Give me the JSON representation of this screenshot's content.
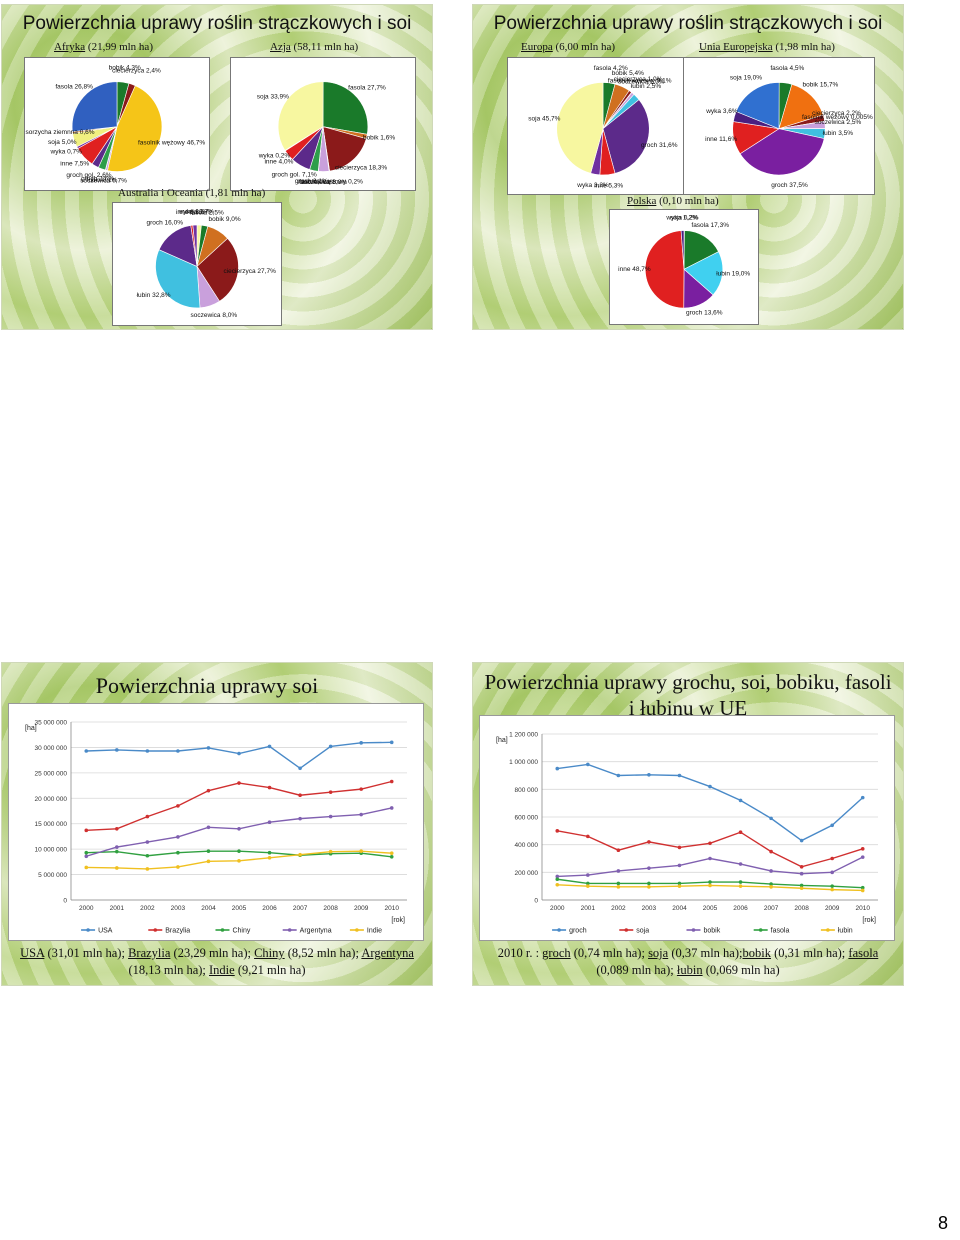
{
  "page_number": "8",
  "slide1": {
    "title": "Powierzchnia uprawy roślin strączkowych i soi",
    "regions": [
      {
        "key": "afryka",
        "name": "Afryka",
        "area": "(21,99 mln ha)"
      },
      {
        "key": "azja",
        "name": "Azja",
        "area": "(58,11 mln ha)"
      },
      {
        "key": "australia",
        "name": "Australia i Oceania",
        "area": "(1,81 mln ha)"
      }
    ]
  },
  "slide2": {
    "title": "Powierzchnia uprawy roślin strączkowych i soi",
    "regions": [
      {
        "key": "europa",
        "name": "Europa",
        "area": "(6,00 mln ha)"
      },
      {
        "key": "ue",
        "name": "Unia Europejska",
        "area": "(1,98 mln ha)"
      },
      {
        "key": "polska",
        "name": "Polska",
        "area": "(0,10 mln ha)"
      }
    ]
  },
  "slide3": {
    "title": "Powierzchnia uprawy soi",
    "caption_parts": [
      {
        "u": "USA",
        "t": " (31,01 mln ha); "
      },
      {
        "u": "Brazylia",
        "t": " (23,29 mln ha); "
      },
      {
        "u": "Chiny",
        "t": " (8,52 mln ha); "
      },
      {
        "u": "Argentyna",
        "t": " (18,13 mln ha); "
      },
      {
        "u": "Indie",
        "t": " (9,21 mln ha)"
      }
    ]
  },
  "slide4": {
    "title": "Powierzchnia uprawy grochu, soi, bobiku, fasoli i łubinu w UE",
    "caption_prefix": "2010 r. : ",
    "caption_parts": [
      {
        "u": "groch",
        "t": " (0,74 mln ha); "
      },
      {
        "u": "soja",
        "t": " (0,37 mln ha);"
      },
      {
        "u": "bobik",
        "t": " (0,31 mln ha); "
      },
      {
        "u": "fasola",
        "t": " (0,089 mln ha); "
      },
      {
        "u": "łubin",
        "t": " (0,069 mln ha)"
      }
    ]
  },
  "chart_data": [
    {
      "type": "pie",
      "id": "afryka",
      "title": "Afryka (21,99 mln ha)",
      "slices": [
        {
          "label": "bobik",
          "value": 4.3,
          "color": "#1a7a2a",
          "text": "bobik 4,3%"
        },
        {
          "label": "ciecierzyca",
          "value": 2.4,
          "color": "#8b1a1a",
          "text": "ciecierzyca 2,4%"
        },
        {
          "label": "fasolnik wężowy",
          "value": 46.7,
          "color": "#f5c518",
          "text": "fasolnik wężowy 46,7%"
        },
        {
          "label": "soczewica",
          "value": 0.7,
          "color": "#c9a0dc",
          "text": "soczewica 0,7%"
        },
        {
          "label": "łubin",
          "value": 0.1,
          "color": "#a0e0f0",
          "text": "łubin 0,1%"
        },
        {
          "label": "groch",
          "value": 2.6,
          "color": "#2e9e4a",
          "text": "groch 2,6%"
        },
        {
          "label": "groch gol.",
          "value": 2.6,
          "color": "#5c2a8a",
          "text": "groch gol. 2,6%"
        },
        {
          "label": "inne",
          "value": 7.5,
          "color": "#e02020",
          "text": "inne 7,5%"
        },
        {
          "label": "wyka",
          "value": 0.7,
          "color": "#7030a0",
          "text": "wyka 0,7%"
        },
        {
          "label": "soja",
          "value": 5.0,
          "color": "#f0f080",
          "text": "soja 5,0%"
        },
        {
          "label": "sorzycha ziemnna",
          "value": 0.6,
          "color": "#d08030",
          "text": "sorzycha ziemnna 0,6%"
        },
        {
          "label": "fasola",
          "value": 26.8,
          "color": "#3060c0",
          "text": "fasola 26,8%"
        }
      ]
    },
    {
      "type": "pie",
      "id": "azja",
      "title": "Azja (58,11 mln ha)",
      "slices": [
        {
          "label": "fasola",
          "value": 27.7,
          "color": "#1a7a2a",
          "text": "fasola 27,7%"
        },
        {
          "label": "bobik",
          "value": 1.6,
          "color": "#d07020",
          "text": "bobik 1,6%"
        },
        {
          "label": "ciecierzyca",
          "value": 18.3,
          "color": "#8b1a1a",
          "text": "ciecierzyca 18,3%"
        },
        {
          "label": "fasolnik wężowy",
          "value": 0.2,
          "color": "#3060c0",
          "text": "fasolnik wężowy 0,2%"
        },
        {
          "label": "soczewica",
          "value": 3.8,
          "color": "#c9a0dc",
          "text": "soczewica 3,8%"
        },
        {
          "label": "łubin",
          "value": 0.001,
          "color": "#a0e0f0",
          "text": "łubin 0,001%"
        },
        {
          "label": "groch",
          "value": 3.1,
          "color": "#2e9e4a",
          "text": "groch 3,1%"
        },
        {
          "label": "groch gol.",
          "value": 7.1,
          "color": "#5c2a8a",
          "text": "groch gol. 7,1%"
        },
        {
          "label": "inne",
          "value": 4.0,
          "color": "#e02020",
          "text": "inne 4,0%"
        },
        {
          "label": "wyka",
          "value": 0.2,
          "color": "#7030a0",
          "text": "wyka 0,2%"
        },
        {
          "label": "soja",
          "value": 33.9,
          "color": "#f7f7a0",
          "text": "soja 33,9%"
        }
      ]
    },
    {
      "type": "pie",
      "id": "australia",
      "title": "Australia i Oceania (1,81 mln ha)",
      "slices": [
        {
          "label": "soja",
          "value": 1.7,
          "color": "#f7f7a0",
          "text": "soja 1,7%"
        },
        {
          "label": "fasola",
          "value": 2.5,
          "color": "#1a7a2a",
          "text": "fasola 2,5%"
        },
        {
          "label": "bobik",
          "value": 9.0,
          "color": "#d07020",
          "text": "bobik 9,0%"
        },
        {
          "label": "ciecierzyca",
          "value": 27.7,
          "color": "#8b1a1a",
          "text": "ciecierzyca 27,7%"
        },
        {
          "label": "soczewica",
          "value": 8.0,
          "color": "#c9a0dc",
          "text": "soczewica 8,0%"
        },
        {
          "label": "łubin",
          "value": 32.8,
          "color": "#40c0e0",
          "text": "łubin 32,8%"
        },
        {
          "label": "groch",
          "value": 16.0,
          "color": "#5c2a8a",
          "text": "groch 16,0%"
        },
        {
          "label": "inne",
          "value": 0.8,
          "color": "#e02020",
          "text": "inne 0,8%"
        },
        {
          "label": "wyka",
          "value": 1.6,
          "color": "#7030a0",
          "text": "wyka 1,6%"
        }
      ]
    },
    {
      "type": "pie",
      "id": "europa",
      "title": "Europa (6,00 mln ha)",
      "slices": [
        {
          "label": "fasola",
          "value": 4.2,
          "color": "#1a7a2a",
          "text": "fasola 4,2%"
        },
        {
          "label": "bobik",
          "value": 5.4,
          "color": "#d07020",
          "text": "bobik 5,4%"
        },
        {
          "label": "ciecierzyca",
          "value": 1.0,
          "color": "#8b1a1a",
          "text": "ciecierzyca 1,0%"
        },
        {
          "label": "fasolnik wężowy",
          "value": 0.1,
          "color": "#3060c0",
          "text": "fasolnik wężowy 0,1%"
        },
        {
          "label": "soczewica",
          "value": 1.0,
          "color": "#c9a0dc",
          "text": "soczewica 1,0%"
        },
        {
          "label": "łubin",
          "value": 2.5,
          "color": "#40c0e0",
          "text": "łubin 2,5%"
        },
        {
          "label": "groch",
          "value": 31.6,
          "color": "#5c2a8a",
          "text": "groch 31,6%"
        },
        {
          "label": "inne",
          "value": 5.3,
          "color": "#e02020",
          "text": "inne 5,3%"
        },
        {
          "label": "wyka",
          "value": 3.2,
          "color": "#7030a0",
          "text": "wyka 3,2%"
        },
        {
          "label": "soja",
          "value": 45.7,
          "color": "#f7f7a0",
          "text": "soja 45,7%"
        }
      ]
    },
    {
      "type": "pie",
      "id": "ue",
      "title": "Unia Europejska (1,98 mln ha)",
      "slices": [
        {
          "label": "fasola",
          "value": 4.5,
          "color": "#1a7a2a",
          "text": "fasola 4,5%"
        },
        {
          "label": "bobik",
          "value": 15.7,
          "color": "#f07010",
          "text": "bobik 15,7%"
        },
        {
          "label": "ciecierzyca",
          "value": 2.2,
          "color": "#8b1a1a",
          "text": "ciecierzyca 2,2%"
        },
        {
          "label": "fasolnik wężowy",
          "value": 0.005,
          "color": "#3060c0",
          "text": "fasolnik wężowy 0,005%"
        },
        {
          "label": "soczewica",
          "value": 2.5,
          "color": "#c9a0dc",
          "text": "soczewica 2,5%"
        },
        {
          "label": "łubin",
          "value": 3.5,
          "color": "#40c0e0",
          "text": "łubin 3,5%"
        },
        {
          "label": "groch",
          "value": 37.5,
          "color": "#7a1fa0",
          "text": "groch 37,5%"
        },
        {
          "label": "inne",
          "value": 11.6,
          "color": "#e02020",
          "text": "inne 11,6%"
        },
        {
          "label": "wyka",
          "value": 3.6,
          "color": "#4a1f80",
          "text": "wyka 3,6%"
        },
        {
          "label": "soja",
          "value": 19.0,
          "color": "#3070d0",
          "text": "soja 19,0%"
        }
      ]
    },
    {
      "type": "pie",
      "id": "polska",
      "title": "Polska (0,10 mln ha)",
      "slices": [
        {
          "label": "soja",
          "value": 0.2,
          "color": "#f7f7a0",
          "text": "soja 0,2%"
        },
        {
          "label": "fasola",
          "value": 17.3,
          "color": "#1a7a2a",
          "text": "fasola 17,3%"
        },
        {
          "label": "łubin",
          "value": 19.0,
          "color": "#40d0f0",
          "text": "łubin 19,0%"
        },
        {
          "label": "groch",
          "value": 13.6,
          "color": "#7a1fa0",
          "text": "groch 13,6%"
        },
        {
          "label": "inne",
          "value": 48.7,
          "color": "#e02020",
          "text": "inne 48,7%"
        },
        {
          "label": "wyka",
          "value": 1.2,
          "color": "#4a1f80",
          "text": "wyka 1,2%"
        }
      ]
    },
    {
      "type": "line",
      "id": "soja_swiat",
      "title": "Powierzchnia uprawy soi",
      "ylabel": "[ha]",
      "xlabel": "[rok]",
      "x": [
        "2000",
        "2001",
        "2002",
        "2003",
        "2004",
        "2005",
        "2006",
        "2007",
        "2008",
        "2009",
        "2010"
      ],
      "ylim": [
        0,
        35000000
      ],
      "yticks": [
        "0",
        "5 000 000",
        "10 000 000",
        "15 000 000",
        "20 000 000",
        "25 000 000",
        "30 000 000",
        "35 000 000"
      ],
      "series": [
        {
          "name": "USA",
          "color": "#4a8ac8",
          "values": [
            29300000,
            29500000,
            29300000,
            29300000,
            29900000,
            28800000,
            30200000,
            25900000,
            30200000,
            30900000,
            31000000
          ]
        },
        {
          "name": "Brazylia",
          "color": "#d03030",
          "values": [
            13700000,
            14000000,
            16400000,
            18500000,
            21500000,
            23000000,
            22100000,
            20600000,
            21200000,
            21800000,
            23300000
          ]
        },
        {
          "name": "Chiny",
          "color": "#30a040",
          "values": [
            9300000,
            9500000,
            8700000,
            9300000,
            9600000,
            9600000,
            9300000,
            8800000,
            9100000,
            9200000,
            8500000
          ]
        },
        {
          "name": "Argentyna",
          "color": "#8060b0",
          "values": [
            8600000,
            10400000,
            11400000,
            12400000,
            14300000,
            14000000,
            15300000,
            16000000,
            16400000,
            16800000,
            18100000
          ]
        },
        {
          "name": "Indie",
          "color": "#f0c020",
          "values": [
            6400000,
            6300000,
            6100000,
            6500000,
            7600000,
            7700000,
            8300000,
            8900000,
            9500000,
            9600000,
            9200000
          ]
        }
      ]
    },
    {
      "type": "line",
      "id": "ue_uprawy",
      "title": "Powierzchnia uprawy grochu, soi, bobiku, fasoli i łubinu w UE",
      "ylabel": "[ha]",
      "xlabel": "[rok]",
      "x": [
        "2000",
        "2001",
        "2002",
        "2003",
        "2004",
        "2005",
        "2006",
        "2007",
        "2008",
        "2009",
        "2010"
      ],
      "ylim": [
        0,
        1200000
      ],
      "yticks": [
        "0",
        "200 000",
        "400 000",
        "600 000",
        "800 000",
        "1 000 000",
        "1 200 000"
      ],
      "series": [
        {
          "name": "groch",
          "color": "#4a8ac8",
          "values": [
            950000,
            980000,
            900000,
            905000,
            900000,
            820000,
            720000,
            590000,
            430000,
            540000,
            740000
          ]
        },
        {
          "name": "soja",
          "color": "#d03030",
          "values": [
            500000,
            460000,
            360000,
            420000,
            380000,
            410000,
            490000,
            350000,
            240000,
            300000,
            370000
          ]
        },
        {
          "name": "bobik",
          "color": "#8060b0",
          "values": [
            170000,
            180000,
            210000,
            230000,
            250000,
            300000,
            260000,
            210000,
            190000,
            200000,
            310000
          ]
        },
        {
          "name": "fasola",
          "color": "#30a040",
          "values": [
            150000,
            120000,
            120000,
            120000,
            120000,
            130000,
            130000,
            115000,
            105000,
            100000,
            89000
          ]
        },
        {
          "name": "łubin",
          "color": "#f0c020",
          "values": [
            110000,
            100000,
            95000,
            95000,
            100000,
            105000,
            100000,
            95000,
            85000,
            75000,
            69000
          ]
        }
      ]
    }
  ]
}
